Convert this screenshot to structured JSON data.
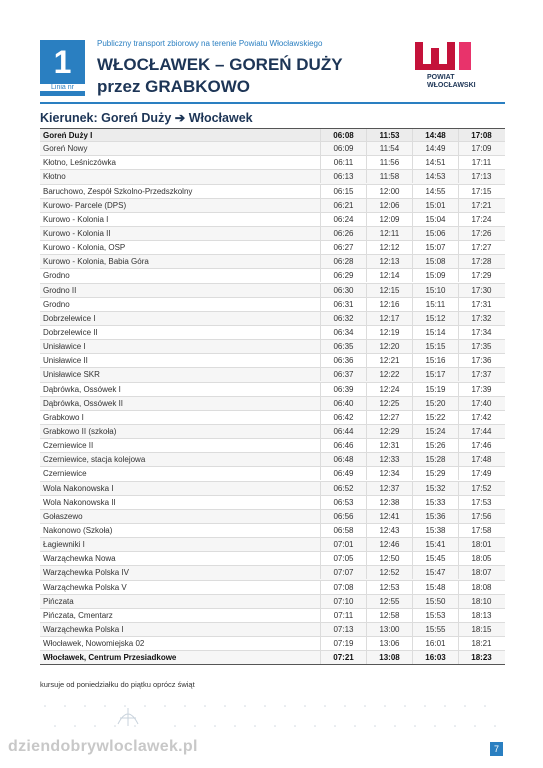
{
  "header": {
    "line_number": "1",
    "line_label": "Linia nr",
    "subtitle": "Publiczny transport zbiorowy na terenie Powiatu Włocławskiego",
    "title": "WŁOCŁAWEK – GOREŃ DUŻY",
    "title_via": "przez GRABKOWO",
    "logo_line1": "POWIAT",
    "logo_line2": "WŁOCŁAWSKI"
  },
  "direction": "Kierunek: Goreń Duży ➔ Włocławek",
  "table": {
    "rows": [
      [
        "Goreń Duży I",
        "06:08",
        "11:53",
        "14:48",
        "17:08"
      ],
      [
        "Goreń Nowy",
        "06:09",
        "11:54",
        "14:49",
        "17:09"
      ],
      [
        "Kłotno, Leśniczówka",
        "06:11",
        "11:56",
        "14:51",
        "17:11"
      ],
      [
        "Kłotno",
        "06:13",
        "11:58",
        "14:53",
        "17:13"
      ],
      [
        "Baruchowo, Zespół Szkolno-Przedszkolny",
        "06:15",
        "12:00",
        "14:55",
        "17:15"
      ],
      [
        "Kurowo- Parcele (DPS)",
        "06:21",
        "12:06",
        "15:01",
        "17:21"
      ],
      [
        "Kurowo - Kolonia I",
        "06:24",
        "12:09",
        "15:04",
        "17:24"
      ],
      [
        "Kurowo - Kolonia II",
        "06:26",
        "12:11",
        "15:06",
        "17:26"
      ],
      [
        "Kurowo - Kolonia, OSP",
        "06:27",
        "12:12",
        "15:07",
        "17:27"
      ],
      [
        "Kurowo - Kolonia, Babia Góra",
        "06:28",
        "12:13",
        "15:08",
        "17:28"
      ],
      [
        "Grodno",
        "06:29",
        "12:14",
        "15:09",
        "17:29"
      ],
      [
        "Grodno II",
        "06:30",
        "12:15",
        "15:10",
        "17:30"
      ],
      [
        "Grodno",
        "06:31",
        "12:16",
        "15:11",
        "17:31"
      ],
      [
        "Dobrzelewice I",
        "06:32",
        "12:17",
        "15:12",
        "17:32"
      ],
      [
        "Dobrzelewice II",
        "06:34",
        "12:19",
        "15:14",
        "17:34"
      ],
      [
        "Unisławice I",
        "06:35",
        "12:20",
        "15:15",
        "17:35"
      ],
      [
        "Unisławice II",
        "06:36",
        "12:21",
        "15:16",
        "17:36"
      ],
      [
        "Unisławice SKR",
        "06:37",
        "12:22",
        "15:17",
        "17:37"
      ],
      [
        "Dąbrówka, Ossówek I",
        "06:39",
        "12:24",
        "15:19",
        "17:39"
      ],
      [
        "Dąbrówka, Ossówek II",
        "06:40",
        "12:25",
        "15:20",
        "17:40"
      ],
      [
        "Grabkowo I",
        "06:42",
        "12:27",
        "15:22",
        "17:42"
      ],
      [
        "Grabkowo II (szkoła)",
        "06:44",
        "12:29",
        "15:24",
        "17:44"
      ],
      [
        "Czerniewice II",
        "06:46",
        "12:31",
        "15:26",
        "17:46"
      ],
      [
        "Czerniewice, stacja kolejowa",
        "06:48",
        "12:33",
        "15:28",
        "17:48"
      ],
      [
        "Czerniewice",
        "06:49",
        "12:34",
        "15:29",
        "17:49"
      ],
      [
        "Wola Nakonowska I",
        "06:52",
        "12:37",
        "15:32",
        "17:52"
      ],
      [
        "Wola Nakonowska II",
        "06:53",
        "12:38",
        "15:33",
        "17:53"
      ],
      [
        "Gołaszewo",
        "06:56",
        "12:41",
        "15:36",
        "17:56"
      ],
      [
        "Nakonowo (Szkoła)",
        "06:58",
        "12:43",
        "15:38",
        "17:58"
      ],
      [
        "Łagiewniki I",
        "07:01",
        "12:46",
        "15:41",
        "18:01"
      ],
      [
        "Warząchewka Nowa",
        "07:05",
        "12:50",
        "15:45",
        "18:05"
      ],
      [
        "Warząchewka Polska IV",
        "07:07",
        "12:52",
        "15:47",
        "18:07"
      ],
      [
        "Warząchewka Polska V",
        "07:08",
        "12:53",
        "15:48",
        "18:08"
      ],
      [
        "Pińczata",
        "07:10",
        "12:55",
        "15:50",
        "18:10"
      ],
      [
        "Pińczata, Cmentarz",
        "07:11",
        "12:58",
        "15:53",
        "18:13"
      ],
      [
        "Warząchewka Polska I",
        "07:13",
        "13:00",
        "15:55",
        "18:15"
      ],
      [
        "Włocławek, Nowomiejska 02",
        "07:19",
        "13:06",
        "16:01",
        "18:21"
      ],
      [
        "Włocławek, Centrum Przesiadkowe",
        "07:21",
        "13:08",
        "16:03",
        "18:23"
      ]
    ]
  },
  "footnote": "kursuje od poniedziałku do piątku oprócz świąt",
  "watermark": "dziendobrywloclawek.pl",
  "page_number": "7"
}
